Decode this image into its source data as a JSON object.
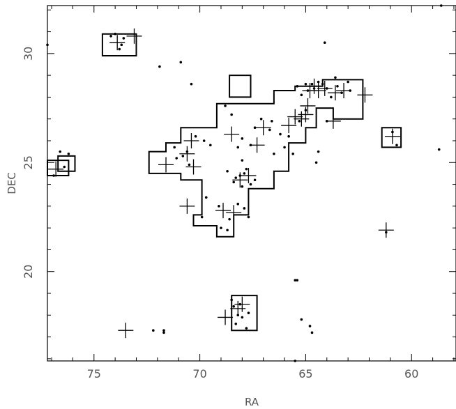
{
  "chart_data": {
    "type": "scatter",
    "title": "",
    "xlabel": "RA",
    "ylabel": "DEC",
    "xlim": [
      77.2,
      57.9
    ],
    "ylim": [
      15.9,
      32.2
    ],
    "x_reversed": true,
    "grid": false,
    "x_ticks": [
      75,
      70,
      65,
      60
    ],
    "y_ticks": [
      20,
      25,
      30
    ],
    "x_tick_labels": [
      "75",
      "70",
      "65",
      "60"
    ],
    "y_tick_labels": [
      "20",
      "25",
      "30"
    ],
    "regions": [
      {
        "name": "main-survey-region",
        "points": [
          [
            72.4,
            25.5
          ],
          [
            71.6,
            25.5
          ],
          [
            71.6,
            25.9
          ],
          [
            70.9,
            25.9
          ],
          [
            70.9,
            26.6
          ],
          [
            69.2,
            26.6
          ],
          [
            69.2,
            27.7
          ],
          [
            66.5,
            27.7
          ],
          [
            66.5,
            28.3
          ],
          [
            65.5,
            28.3
          ],
          [
            65.5,
            28.5
          ],
          [
            64.2,
            28.5
          ],
          [
            64.2,
            28.8
          ],
          [
            62.3,
            28.8
          ],
          [
            62.3,
            27.0
          ],
          [
            63.7,
            27.0
          ],
          [
            63.7,
            27.5
          ],
          [
            64.5,
            27.5
          ],
          [
            64.5,
            26.6
          ],
          [
            65.0,
            26.6
          ],
          [
            65.0,
            25.9
          ],
          [
            65.8,
            25.9
          ],
          [
            65.8,
            24.6
          ],
          [
            66.5,
            24.6
          ],
          [
            66.5,
            23.8
          ],
          [
            67.7,
            23.8
          ],
          [
            67.7,
            22.6
          ],
          [
            68.4,
            22.6
          ],
          [
            68.4,
            21.6
          ],
          [
            69.2,
            21.6
          ],
          [
            69.2,
            22.1
          ],
          [
            70.3,
            22.1
          ],
          [
            70.3,
            22.6
          ],
          [
            69.9,
            22.6
          ],
          [
            69.9,
            24.2
          ],
          [
            70.9,
            24.2
          ],
          [
            70.9,
            24.5
          ],
          [
            72.4,
            24.5
          ]
        ]
      },
      {
        "name": "box-upper-left",
        "points": [
          [
            74.6,
            30.9
          ],
          [
            73.0,
            30.9
          ],
          [
            73.0,
            29.9
          ],
          [
            74.6,
            29.9
          ]
        ]
      },
      {
        "name": "box-top-center",
        "points": [
          [
            68.6,
            29.0
          ],
          [
            67.6,
            29.0
          ],
          [
            67.6,
            28.0
          ],
          [
            68.6,
            28.0
          ]
        ]
      },
      {
        "name": "box-left-edge",
        "points": [
          [
            77.2,
            25.1
          ],
          [
            76.2,
            25.1
          ],
          [
            76.2,
            24.4
          ],
          [
            77.2,
            24.4
          ]
        ]
      },
      {
        "name": "box-left-edge-inner",
        "points": [
          [
            76.7,
            25.3
          ],
          [
            75.9,
            25.3
          ],
          [
            75.9,
            24.6
          ],
          [
            76.7,
            24.6
          ]
        ]
      },
      {
        "name": "box-right",
        "points": [
          [
            61.4,
            26.6
          ],
          [
            60.5,
            26.6
          ],
          [
            60.5,
            25.7
          ],
          [
            61.4,
            25.7
          ]
        ]
      },
      {
        "name": "box-bottom",
        "points": [
          [
            68.5,
            18.9
          ],
          [
            67.3,
            18.9
          ],
          [
            67.3,
            17.3
          ],
          [
            68.5,
            17.3
          ]
        ]
      }
    ],
    "series": [
      {
        "marker": "cross",
        "points": [
          [
            73.9,
            30.5
          ],
          [
            73.1,
            30.8
          ],
          [
            71.6,
            24.9
          ],
          [
            70.4,
            26.0
          ],
          [
            70.6,
            25.4
          ],
          [
            70.3,
            24.8
          ],
          [
            70.6,
            23.0
          ],
          [
            68.9,
            22.8
          ],
          [
            68.4,
            22.7
          ],
          [
            68.5,
            26.3
          ],
          [
            67.7,
            24.4
          ],
          [
            68.1,
            24.2
          ],
          [
            67.3,
            25.8
          ],
          [
            67.0,
            26.6
          ],
          [
            65.8,
            26.7
          ],
          [
            65.2,
            27.0
          ],
          [
            65.5,
            27.1
          ],
          [
            65.0,
            27.2
          ],
          [
            64.9,
            27.6
          ],
          [
            64.8,
            28.3
          ],
          [
            64.6,
            28.5
          ],
          [
            64.4,
            28.3
          ],
          [
            64.1,
            28.4
          ],
          [
            63.6,
            28.2
          ],
          [
            63.2,
            28.3
          ],
          [
            63.7,
            26.9
          ],
          [
            62.2,
            28.1
          ],
          [
            60.9,
            26.2
          ],
          [
            61.2,
            21.9
          ],
          [
            73.5,
            17.3
          ],
          [
            68.2,
            18.3
          ],
          [
            68.0,
            18.5
          ],
          [
            68.8,
            17.9
          ],
          [
            76.8,
            24.7
          ]
        ]
      },
      {
        "marker": "dot",
        "points": [
          [
            77.2,
            30.4
          ],
          [
            74.0,
            30.9
          ],
          [
            73.7,
            30.4
          ],
          [
            73.8,
            30.2
          ],
          [
            74.2,
            30.8
          ],
          [
            73.6,
            30.7
          ],
          [
            71.9,
            29.4
          ],
          [
            70.9,
            29.6
          ],
          [
            70.4,
            28.6
          ],
          [
            68.8,
            27.6
          ],
          [
            68.5,
            27.2
          ],
          [
            67.1,
            27.0
          ],
          [
            67.4,
            26.6
          ],
          [
            66.7,
            26.5
          ],
          [
            66.2,
            26.3
          ],
          [
            66.5,
            25.4
          ],
          [
            66.0,
            25.7
          ],
          [
            65.6,
            25.4
          ],
          [
            68.0,
            26.1
          ],
          [
            67.6,
            25.8
          ],
          [
            68.2,
            25.7
          ],
          [
            68.0,
            25.1
          ],
          [
            67.8,
            24.7
          ],
          [
            67.4,
            24.2
          ],
          [
            67.6,
            24.0
          ],
          [
            68.7,
            24.6
          ],
          [
            69.5,
            25.8
          ],
          [
            69.8,
            26.0
          ],
          [
            70.2,
            26.2
          ],
          [
            70.6,
            25.5
          ],
          [
            70.8,
            25.3
          ],
          [
            71.1,
            25.2
          ],
          [
            71.2,
            25.7
          ],
          [
            70.5,
            24.9
          ],
          [
            69.7,
            23.4
          ],
          [
            69.9,
            22.5
          ],
          [
            69.1,
            23.0
          ],
          [
            68.6,
            22.4
          ],
          [
            68.2,
            23.1
          ],
          [
            67.9,
            22.9
          ],
          [
            67.7,
            22.5
          ],
          [
            68.4,
            24.1
          ],
          [
            68.3,
            24.3
          ],
          [
            68.1,
            24.4
          ],
          [
            68.0,
            23.9
          ],
          [
            67.9,
            24.5
          ],
          [
            69.0,
            22.0
          ],
          [
            68.7,
            21.9
          ],
          [
            66.6,
            26.9
          ],
          [
            65.8,
            26.2
          ],
          [
            65.3,
            26.9
          ],
          [
            65.0,
            27.4
          ],
          [
            65.4,
            28.5
          ],
          [
            65.2,
            28.1
          ],
          [
            65.0,
            28.6
          ],
          [
            64.9,
            28.3
          ],
          [
            64.7,
            28.6
          ],
          [
            64.6,
            28.4
          ],
          [
            64.4,
            28.7
          ],
          [
            64.2,
            28.6
          ],
          [
            64.0,
            28.4
          ],
          [
            63.8,
            28.0
          ],
          [
            63.5,
            28.5
          ],
          [
            63.3,
            28.2
          ],
          [
            63.6,
            28.9
          ],
          [
            63.0,
            28.7
          ],
          [
            62.9,
            28.3
          ],
          [
            64.1,
            30.5
          ],
          [
            64.4,
            25.5
          ],
          [
            60.9,
            26.4
          ],
          [
            60.7,
            25.8
          ],
          [
            61.2,
            21.8
          ],
          [
            58.7,
            25.6
          ],
          [
            58.6,
            32.2
          ],
          [
            76.4,
            24.8
          ],
          [
            76.6,
            25.5
          ],
          [
            76.2,
            25.4
          ],
          [
            76.9,
            24.4
          ],
          [
            72.2,
            17.3
          ],
          [
            71.7,
            17.2
          ],
          [
            71.7,
            17.3
          ],
          [
            68.5,
            18.7
          ],
          [
            68.2,
            18.0
          ],
          [
            68.0,
            17.9
          ],
          [
            67.7,
            18.1
          ],
          [
            68.3,
            17.6
          ],
          [
            67.8,
            17.4
          ],
          [
            68.4,
            18.4
          ],
          [
            68.1,
            18.5
          ],
          [
            65.4,
            19.6
          ],
          [
            65.5,
            19.6
          ],
          [
            65.2,
            17.8
          ],
          [
            64.8,
            17.5
          ],
          [
            64.7,
            17.2
          ],
          [
            65.5,
            15.9
          ],
          [
            64.5,
            25.0
          ],
          [
            64.0,
            26.9
          ]
        ]
      }
    ]
  }
}
